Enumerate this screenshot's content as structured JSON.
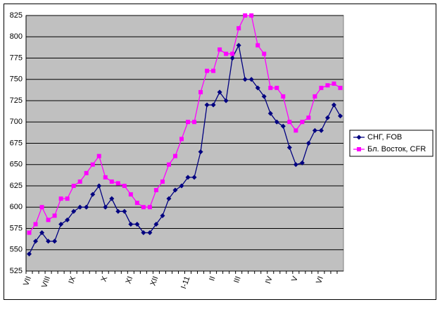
{
  "chart_data": {
    "type": "line",
    "categories": [
      "VII",
      null,
      null,
      "VIII",
      null,
      null,
      null,
      "IX",
      null,
      null,
      null,
      null,
      "X",
      null,
      null,
      null,
      "XI",
      null,
      null,
      null,
      "XII",
      null,
      null,
      null,
      null,
      "I-11",
      null,
      null,
      null,
      "II",
      null,
      null,
      null,
      "III",
      null,
      null,
      null,
      null,
      "IV",
      null,
      null,
      null,
      "V",
      null,
      null,
      null,
      "VI",
      null,
      null,
      null
    ],
    "series": [
      {
        "name": "СНГ, FOB",
        "color": "#000080",
        "marker": "diamond",
        "values": [
          545,
          560,
          570,
          560,
          560,
          580,
          585,
          595,
          600,
          600,
          615,
          625,
          600,
          610,
          595,
          595,
          580,
          580,
          570,
          570,
          580,
          590,
          610,
          620,
          625,
          635,
          635,
          665,
          720,
          720,
          735,
          725,
          775,
          790,
          750,
          750,
          740,
          730,
          710,
          700,
          695,
          670,
          650,
          652,
          675,
          690,
          690,
          705,
          720,
          707
        ]
      },
      {
        "name": "Бл. Восток, CFR",
        "color": "#ff00ff",
        "marker": "square",
        "values": [
          570,
          580,
          600,
          585,
          590,
          610,
          610,
          625,
          630,
          640,
          650,
          660,
          635,
          630,
          628,
          625,
          615,
          605,
          600,
          600,
          620,
          630,
          650,
          660,
          680,
          700,
          700,
          735,
          760,
          760,
          785,
          780,
          780,
          810,
          825,
          825,
          790,
          780,
          740,
          740,
          730,
          700,
          690,
          700,
          705,
          730,
          740,
          743,
          745,
          740
        ]
      }
    ],
    "ylim": [
      525,
      825
    ],
    "yticks": [
      525,
      550,
      575,
      600,
      625,
      650,
      675,
      700,
      725,
      750,
      775,
      800,
      825
    ],
    "grid": true,
    "legend": "right",
    "background": "#c0c0c0"
  }
}
